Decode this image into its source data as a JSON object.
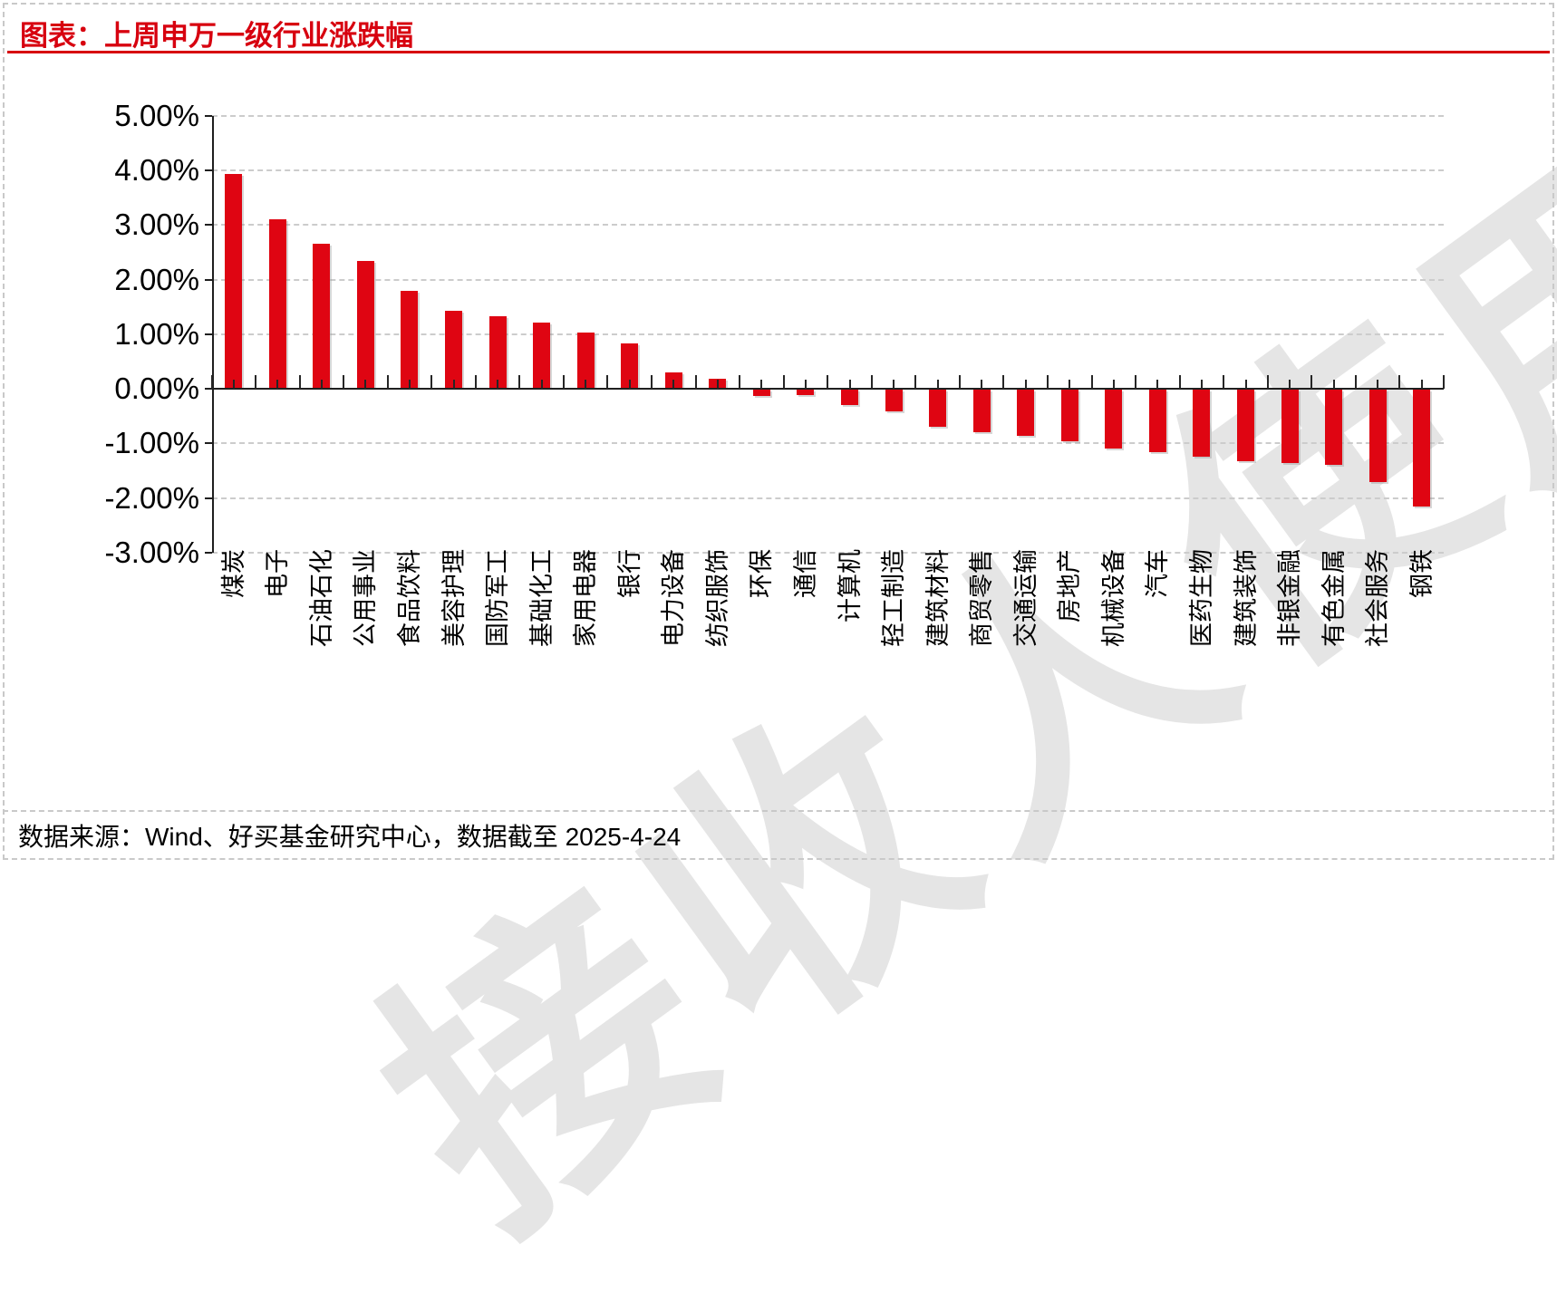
{
  "header": {
    "title": "图表：上周申万一级行业涨跌幅"
  },
  "colors": {
    "accent_red": "#d7000f",
    "bar_red": "#df0512",
    "grid": "#cccccc",
    "axis": "#1f1f1f"
  },
  "chart_data": {
    "type": "bar",
    "title": "上周申万一级行业涨跌幅",
    "categories": [
      "煤炭",
      "电子",
      "石油石化",
      "公用事业",
      "食品饮料",
      "美容护理",
      "国防军工",
      "基础化工",
      "家用电器",
      "银行",
      "电力设备",
      "纺织服饰",
      "环保",
      "通信",
      "计算机",
      "轻工制造",
      "建筑材料",
      "商贸零售",
      "交通运输",
      "房地产",
      "机械设备",
      "汽车",
      "医药生物",
      "建筑装饰",
      "非银金融",
      "有色金属",
      "社会服务",
      "钢铁"
    ],
    "values": [
      3.93,
      3.11,
      2.66,
      2.34,
      1.79,
      1.42,
      1.32,
      1.21,
      1.03,
      0.83,
      0.3,
      0.18,
      -0.14,
      -0.12,
      -0.3,
      -0.41,
      -0.7,
      -0.8,
      -0.87,
      -0.97,
      -1.1,
      -1.16,
      -1.25,
      -1.33,
      -1.36,
      -1.4,
      -1.71,
      -2.15
    ],
    "xlabel": "",
    "ylabel": "",
    "ylim": [
      -3,
      5
    ],
    "y_ticks": [
      "5.00%",
      "4.00%",
      "3.00%",
      "2.00%",
      "1.00%",
      "0.00%",
      "-1.00%",
      "-2.00%",
      "-3.00%"
    ],
    "grid": "horizontal-dashed",
    "legend": "none",
    "unit": "percent"
  },
  "watermark": {
    "text": "接收人使用"
  },
  "footer": {
    "source_text": "数据来源：Wind、好买基金研究中心，数据截至 2025-4-24"
  }
}
